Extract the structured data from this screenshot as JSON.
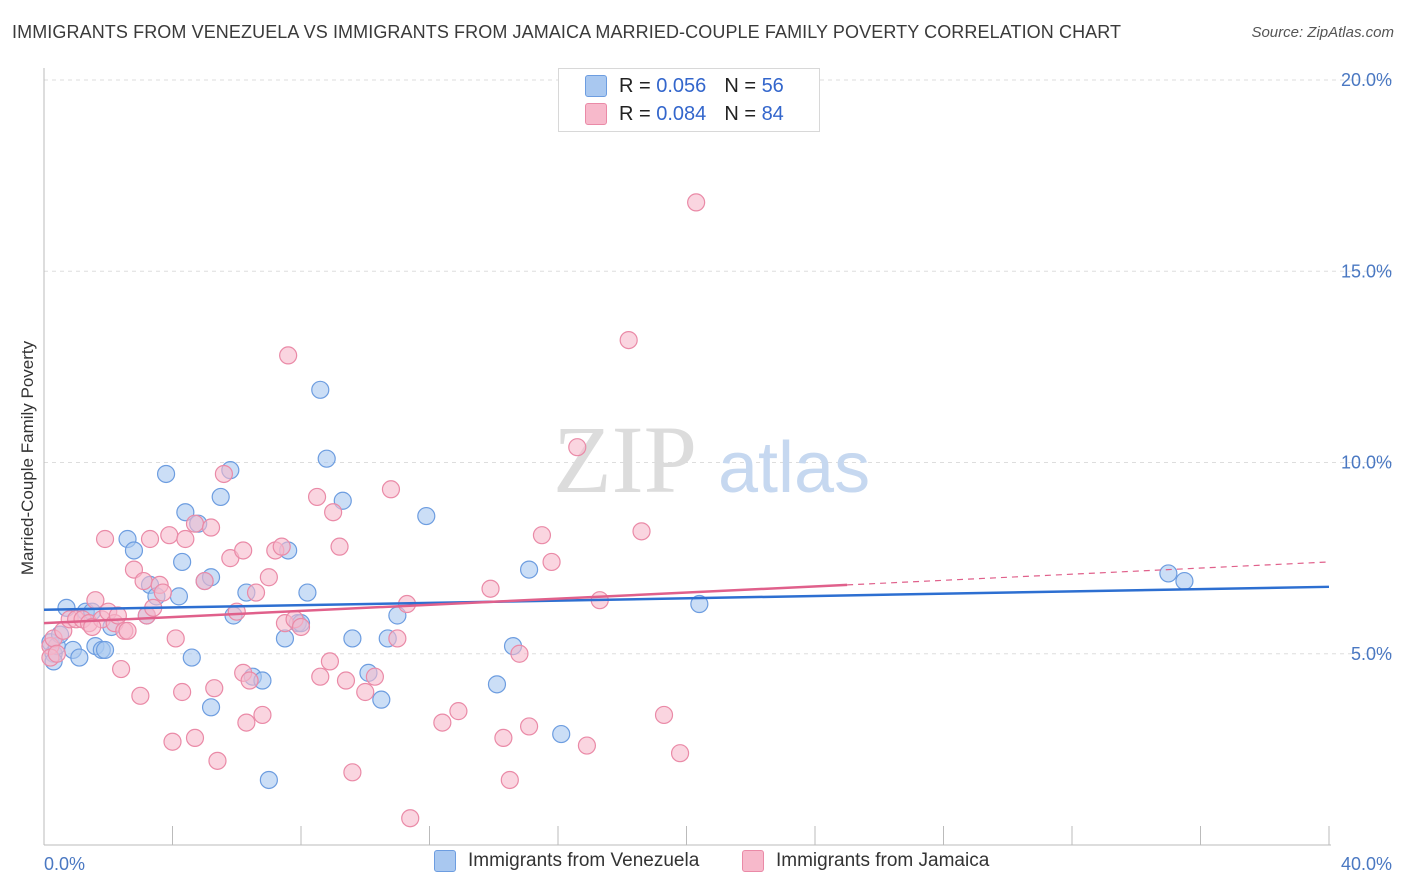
{
  "title": "IMMIGRANTS FROM VENEZUELA VS IMMIGRANTS FROM JAMAICA MARRIED-COUPLE FAMILY POVERTY CORRELATION CHART",
  "source": "Source: ZipAtlas.com",
  "watermark": {
    "zip": "ZIP",
    "atlas": "atlas"
  },
  "colors": {
    "venezuela_fill": "#a9c8f0",
    "venezuela_stroke": "#6d9de0",
    "venezuela_line": "#2d6fd1",
    "jamaica_fill": "#f7b9cb",
    "jamaica_stroke": "#ea8aa7",
    "jamaica_line": "#e0608b",
    "tick_text": "#4a78c2",
    "grid": "#dddddd"
  },
  "legend": {
    "r_label": "R =",
    "n_label": "N =",
    "venezuela": {
      "r": "0.056",
      "n": "56"
    },
    "jamaica": {
      "r": "0.084",
      "n": "84"
    }
  },
  "chart_data": {
    "type": "scatter",
    "xlabel": "",
    "ylabel": "Married-Couple Family Poverty",
    "xlim": [
      0,
      40
    ],
    "ylim": [
      0,
      20
    ],
    "x_tick_labels": [
      "0.0%",
      "40.0%"
    ],
    "y_ticks": [
      5,
      10,
      15,
      20
    ],
    "y_tick_labels": [
      "5.0%",
      "10.0%",
      "15.0%",
      "20.0%"
    ],
    "grid": "horizontal dashed",
    "legend_position": "top-center",
    "series": [
      {
        "name": "Immigrants from Venezuela",
        "trend": {
          "x0": 0,
          "y0": 6.15,
          "x1": 40,
          "y1": 6.75
        },
        "points": [
          [
            0.2,
            5.3
          ],
          [
            0.3,
            5.0
          ],
          [
            0.3,
            4.8
          ],
          [
            0.4,
            5.2
          ],
          [
            0.5,
            5.5
          ],
          [
            0.7,
            6.2
          ],
          [
            0.9,
            5.1
          ],
          [
            1.1,
            4.9
          ],
          [
            1.3,
            6.1
          ],
          [
            1.5,
            6.1
          ],
          [
            1.6,
            5.2
          ],
          [
            1.8,
            5.1
          ],
          [
            1.9,
            5.1
          ],
          [
            2.1,
            5.7
          ],
          [
            2.6,
            8.0
          ],
          [
            2.8,
            7.7
          ],
          [
            3.2,
            6.0
          ],
          [
            3.3,
            6.8
          ],
          [
            3.5,
            6.5
          ],
          [
            3.8,
            9.7
          ],
          [
            4.2,
            6.5
          ],
          [
            4.3,
            7.4
          ],
          [
            4.4,
            8.7
          ],
          [
            4.6,
            4.9
          ],
          [
            4.8,
            8.4
          ],
          [
            5.0,
            6.9
          ],
          [
            5.2,
            7.0
          ],
          [
            5.2,
            3.6
          ],
          [
            5.5,
            9.1
          ],
          [
            5.8,
            9.8
          ],
          [
            5.9,
            6.0
          ],
          [
            6.3,
            6.6
          ],
          [
            6.5,
            4.4
          ],
          [
            6.8,
            4.3
          ],
          [
            7.0,
            1.7
          ],
          [
            7.5,
            5.4
          ],
          [
            7.6,
            7.7
          ],
          [
            7.9,
            5.8
          ],
          [
            8.0,
            5.8
          ],
          [
            8.2,
            6.6
          ],
          [
            8.6,
            11.9
          ],
          [
            8.8,
            10.1
          ],
          [
            9.3,
            9.0
          ],
          [
            9.6,
            5.4
          ],
          [
            10.1,
            4.5
          ],
          [
            10.5,
            3.8
          ],
          [
            10.7,
            5.4
          ],
          [
            11.0,
            6.0
          ],
          [
            11.9,
            8.6
          ],
          [
            14.1,
            4.2
          ],
          [
            14.6,
            5.2
          ],
          [
            15.1,
            7.2
          ],
          [
            16.1,
            2.9
          ],
          [
            20.4,
            6.3
          ],
          [
            35.0,
            7.1
          ],
          [
            35.5,
            6.9
          ]
        ]
      },
      {
        "name": "Immigrants from Jamaica",
        "trend": {
          "x0": 0,
          "y0": 5.8,
          "x1": 25,
          "y1": 6.8,
          "dash_x1": 40,
          "dash_y1": 7.4
        },
        "points": [
          [
            0.2,
            5.2
          ],
          [
            0.2,
            4.9
          ],
          [
            0.3,
            5.4
          ],
          [
            0.4,
            5.0
          ],
          [
            0.6,
            5.6
          ],
          [
            0.8,
            5.9
          ],
          [
            1.0,
            5.9
          ],
          [
            1.2,
            5.9
          ],
          [
            1.4,
            5.8
          ],
          [
            1.6,
            6.4
          ],
          [
            1.8,
            5.9
          ],
          [
            1.9,
            8.0
          ],
          [
            2.0,
            6.1
          ],
          [
            2.2,
            5.8
          ],
          [
            2.3,
            6.0
          ],
          [
            2.5,
            5.6
          ],
          [
            2.6,
            5.6
          ],
          [
            2.8,
            7.2
          ],
          [
            3.0,
            3.9
          ],
          [
            3.1,
            6.9
          ],
          [
            3.2,
            6.0
          ],
          [
            3.3,
            8.0
          ],
          [
            3.4,
            6.2
          ],
          [
            3.6,
            6.8
          ],
          [
            3.7,
            6.6
          ],
          [
            3.9,
            8.1
          ],
          [
            4.0,
            2.7
          ],
          [
            4.1,
            5.4
          ],
          [
            4.3,
            4.0
          ],
          [
            4.4,
            8.0
          ],
          [
            4.7,
            8.4
          ],
          [
            4.7,
            2.8
          ],
          [
            5.0,
            6.9
          ],
          [
            5.2,
            8.3
          ],
          [
            5.3,
            4.1
          ],
          [
            5.4,
            2.2
          ],
          [
            5.6,
            9.7
          ],
          [
            5.8,
            7.5
          ],
          [
            6.0,
            6.1
          ],
          [
            6.2,
            7.7
          ],
          [
            6.2,
            4.5
          ],
          [
            6.3,
            3.2
          ],
          [
            6.4,
            4.3
          ],
          [
            6.6,
            6.6
          ],
          [
            6.8,
            3.4
          ],
          [
            7.0,
            7.0
          ],
          [
            7.2,
            7.7
          ],
          [
            7.4,
            7.8
          ],
          [
            7.5,
            5.8
          ],
          [
            7.6,
            12.8
          ],
          [
            7.8,
            5.9
          ],
          [
            8.0,
            5.7
          ],
          [
            8.5,
            9.1
          ],
          [
            8.6,
            4.4
          ],
          [
            8.9,
            4.8
          ],
          [
            9.0,
            8.7
          ],
          [
            9.2,
            7.8
          ],
          [
            9.4,
            4.3
          ],
          [
            9.6,
            1.9
          ],
          [
            10.0,
            4.0
          ],
          [
            10.3,
            4.4
          ],
          [
            10.8,
            9.3
          ],
          [
            11.0,
            5.4
          ],
          [
            11.3,
            6.3
          ],
          [
            11.4,
            0.7
          ],
          [
            12.4,
            3.2
          ],
          [
            12.9,
            3.5
          ],
          [
            13.9,
            6.7
          ],
          [
            14.3,
            2.8
          ],
          [
            14.5,
            1.7
          ],
          [
            15.1,
            3.1
          ],
          [
            15.5,
            8.1
          ],
          [
            15.8,
            7.4
          ],
          [
            16.6,
            10.4
          ],
          [
            16.9,
            2.6
          ],
          [
            17.3,
            6.4
          ],
          [
            18.2,
            13.2
          ],
          [
            18.6,
            8.2
          ],
          [
            19.3,
            3.4
          ],
          [
            19.8,
            2.4
          ],
          [
            20.3,
            16.8
          ],
          [
            14.8,
            5.0
          ],
          [
            2.4,
            4.6
          ],
          [
            1.5,
            5.7
          ]
        ]
      }
    ]
  }
}
